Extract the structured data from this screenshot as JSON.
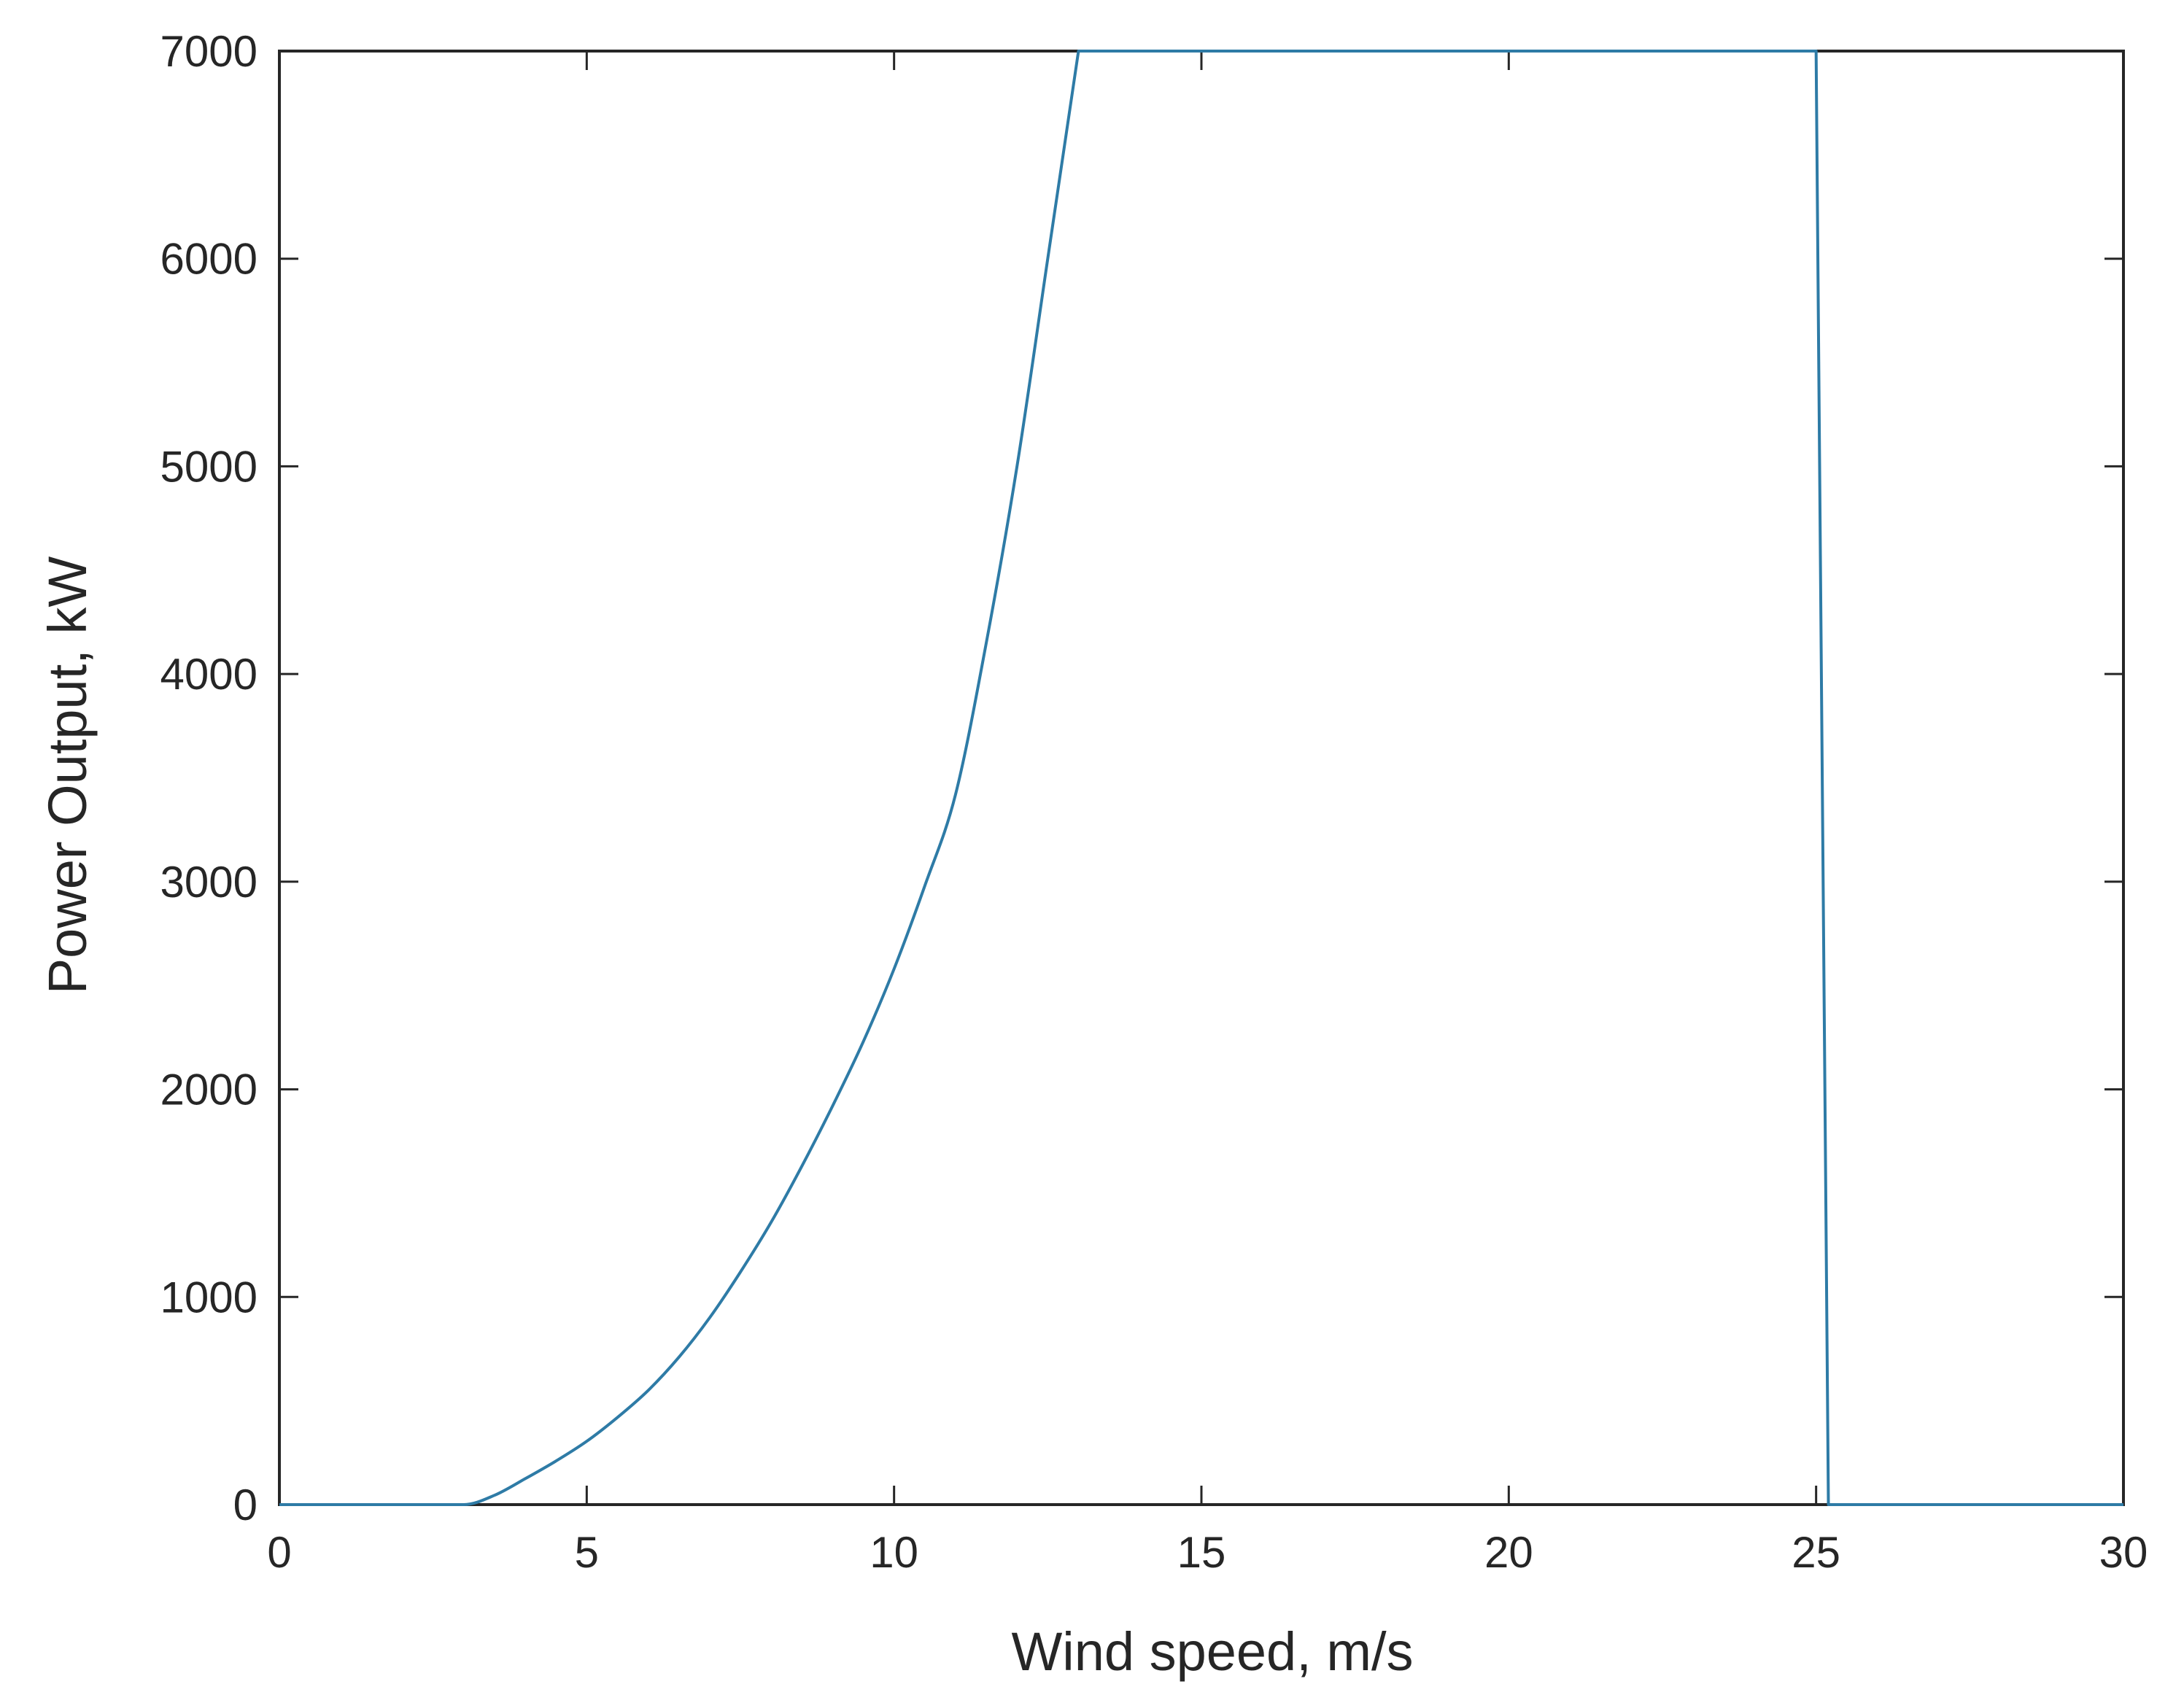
{
  "chart_data": {
    "type": "line",
    "title": "",
    "xlabel": "Wind speed, m/s",
    "ylabel": "Power Output, kW",
    "xlim": [
      0,
      30
    ],
    "ylim": [
      0,
      7000
    ],
    "xticks": [
      0,
      5,
      10,
      15,
      20,
      25,
      30
    ],
    "yticks": [
      0,
      1000,
      2000,
      3000,
      4000,
      5000,
      6000,
      7000
    ],
    "grid": false,
    "legend": "none",
    "line_color": "#2e7ba6",
    "axis_color": "#262626",
    "series": [
      {
        "x": [
          0,
          3,
          3.5,
          4,
          4.5,
          5,
          5.5,
          6,
          6.5,
          7,
          7.5,
          8,
          8.5,
          9,
          9.5,
          10,
          10.5,
          11,
          11.5,
          12,
          12.5,
          13,
          25,
          25.2,
          30
        ],
        "y": [
          0,
          0,
          45,
          125,
          210,
          305,
          420,
          550,
          710,
          900,
          1120,
          1360,
          1630,
          1920,
          2230,
          2580,
          2980,
          3420,
          4150,
          5000,
          6000,
          7000,
          7000,
          0,
          0
        ]
      }
    ]
  }
}
